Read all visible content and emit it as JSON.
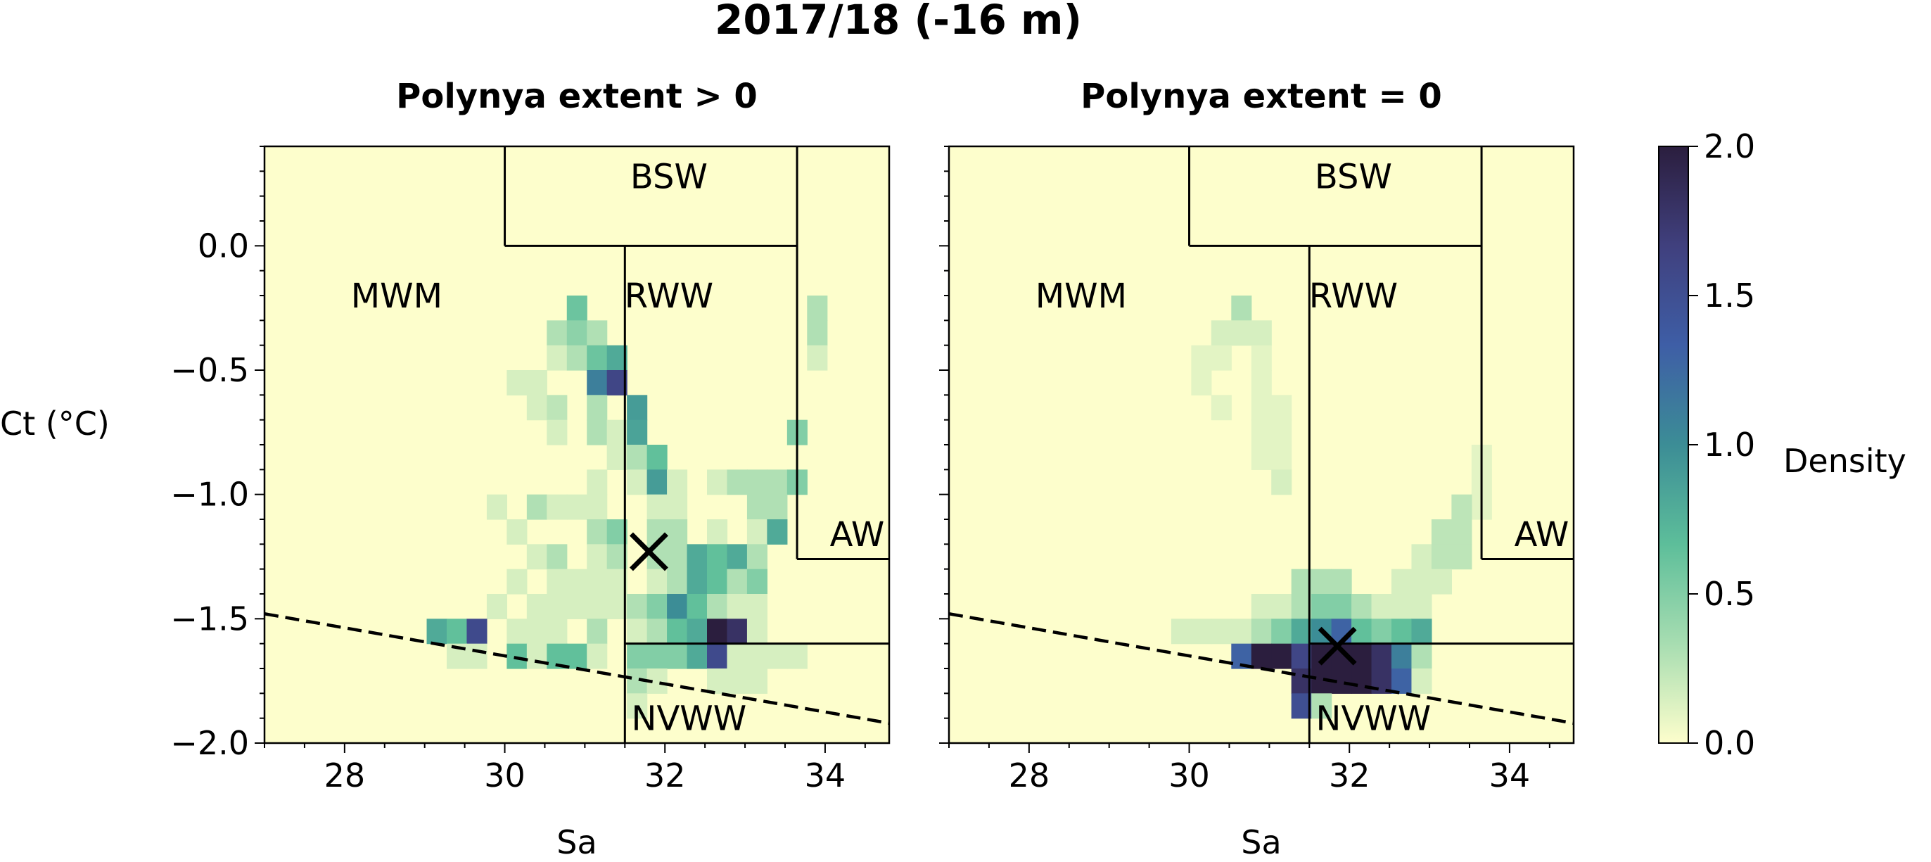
{
  "figure": {
    "title": "2017/18 (-16 m)",
    "colorbar": {
      "label": "Density",
      "ticks": [
        "0.0",
        "0.5",
        "1.0",
        "1.5",
        "2.0"
      ],
      "range": [
        0,
        2
      ],
      "colormap": [
        "#fdfecc",
        "#a7ddb1",
        "#5dbe9a",
        "#3c8d96",
        "#3e5ea6",
        "#40407e",
        "#2b1e3e"
      ]
    }
  },
  "chart_data": [
    {
      "type": "heatmap",
      "title": "Polynya extent > 0",
      "xlabel": "Sa",
      "ylabel": "Ct (°C)",
      "xlim": [
        27,
        34.8
      ],
      "ylim": [
        -2.0,
        0.4
      ],
      "xticks": [
        "28",
        "30",
        "32",
        "34"
      ],
      "yticks": [
        "−2.0",
        "−1.5",
        "−1.0",
        "−0.5",
        "0.0"
      ],
      "background": "#fdfecc",
      "cell_size": {
        "sa": 0.25,
        "ct": 0.1
      },
      "cells": [
        [
          30.9,
          -0.25,
          0.6
        ],
        [
          30.65,
          -0.35,
          0.3
        ],
        [
          30.9,
          -0.35,
          0.45
        ],
        [
          31.15,
          -0.35,
          0.3
        ],
        [
          30.65,
          -0.45,
          0.15
        ],
        [
          30.9,
          -0.45,
          0.3
        ],
        [
          31.15,
          -0.45,
          0.6
        ],
        [
          31.4,
          -0.45,
          0.8
        ],
        [
          30.15,
          -0.55,
          0.15
        ],
        [
          30.4,
          -0.55,
          0.15
        ],
        [
          31.15,
          -0.55,
          1.1
        ],
        [
          31.4,
          -0.55,
          1.6
        ],
        [
          30.4,
          -0.65,
          0.15
        ],
        [
          30.65,
          -0.65,
          0.25
        ],
        [
          31.15,
          -0.65,
          0.3
        ],
        [
          31.65,
          -0.65,
          0.9
        ],
        [
          30.65,
          -0.75,
          0.15
        ],
        [
          31.15,
          -0.75,
          0.3
        ],
        [
          31.4,
          -0.75,
          0.15
        ],
        [
          31.65,
          -0.75,
          0.85
        ],
        [
          31.4,
          -0.85,
          0.15
        ],
        [
          31.65,
          -0.85,
          0.3
        ],
        [
          31.9,
          -0.85,
          0.65
        ],
        [
          33.65,
          -0.75,
          0.5
        ],
        [
          31.15,
          -0.95,
          0.15
        ],
        [
          31.65,
          -0.95,
          0.15
        ],
        [
          31.9,
          -0.95,
          0.9
        ],
        [
          32.15,
          -0.95,
          0.15
        ],
        [
          32.65,
          -0.95,
          0.15
        ],
        [
          32.9,
          -0.95,
          0.3
        ],
        [
          33.15,
          -0.95,
          0.3
        ],
        [
          33.4,
          -0.95,
          0.3
        ],
        [
          33.65,
          -0.95,
          0.5
        ],
        [
          29.9,
          -1.05,
          0.15
        ],
        [
          30.4,
          -1.05,
          0.3
        ],
        [
          30.65,
          -1.05,
          0.15
        ],
        [
          30.9,
          -1.05,
          0.15
        ],
        [
          31.15,
          -1.05,
          0.15
        ],
        [
          31.9,
          -1.05,
          0.15
        ],
        [
          32.15,
          -1.05,
          0.15
        ],
        [
          33.15,
          -1.05,
          0.3
        ],
        [
          33.4,
          -1.05,
          0.3
        ],
        [
          30.15,
          -1.15,
          0.15
        ],
        [
          31.15,
          -1.15,
          0.3
        ],
        [
          31.4,
          -1.15,
          0.5
        ],
        [
          31.9,
          -1.15,
          0.3
        ],
        [
          32.15,
          -1.15,
          0.3
        ],
        [
          32.65,
          -1.15,
          0.15
        ],
        [
          33.15,
          -1.15,
          0.15
        ],
        [
          33.4,
          -1.15,
          0.8
        ],
        [
          30.4,
          -1.25,
          0.15
        ],
        [
          30.65,
          -1.25,
          0.3
        ],
        [
          31.15,
          -1.25,
          0.15
        ],
        [
          31.4,
          -1.25,
          0.3
        ],
        [
          31.9,
          -1.25,
          0.3
        ],
        [
          32.15,
          -1.25,
          0.3
        ],
        [
          32.4,
          -1.25,
          0.8
        ],
        [
          32.65,
          -1.25,
          0.65
        ],
        [
          32.9,
          -1.25,
          0.8
        ],
        [
          33.15,
          -1.25,
          0.3
        ],
        [
          30.15,
          -1.35,
          0.15
        ],
        [
          30.65,
          -1.35,
          0.15
        ],
        [
          30.9,
          -1.35,
          0.15
        ],
        [
          31.15,
          -1.35,
          0.15
        ],
        [
          31.4,
          -1.35,
          0.15
        ],
        [
          31.9,
          -1.35,
          0.15
        ],
        [
          32.15,
          -1.35,
          0.3
        ],
        [
          32.4,
          -1.35,
          0.8
        ],
        [
          32.65,
          -1.35,
          0.65
        ],
        [
          32.9,
          -1.35,
          0.3
        ],
        [
          33.15,
          -1.35,
          0.5
        ],
        [
          29.9,
          -1.45,
          0.15
        ],
        [
          30.4,
          -1.45,
          0.15
        ],
        [
          30.65,
          -1.45,
          0.15
        ],
        [
          30.9,
          -1.45,
          0.15
        ],
        [
          31.15,
          -1.45,
          0.15
        ],
        [
          31.4,
          -1.45,
          0.15
        ],
        [
          31.65,
          -1.45,
          0.3
        ],
        [
          31.9,
          -1.45,
          0.5
        ],
        [
          32.15,
          -1.45,
          1.0
        ],
        [
          32.4,
          -1.45,
          0.65
        ],
        [
          32.65,
          -1.45,
          0.3
        ],
        [
          32.9,
          -1.45,
          0.15
        ],
        [
          33.15,
          -1.45,
          0.15
        ],
        [
          29.15,
          -1.55,
          0.8
        ],
        [
          29.4,
          -1.55,
          0.65
        ],
        [
          29.65,
          -1.55,
          1.55
        ],
        [
          30.15,
          -1.55,
          0.15
        ],
        [
          30.4,
          -1.55,
          0.15
        ],
        [
          30.65,
          -1.55,
          0.15
        ],
        [
          31.15,
          -1.55,
          0.3
        ],
        [
          31.65,
          -1.55,
          0.15
        ],
        [
          31.9,
          -1.55,
          0.3
        ],
        [
          32.15,
          -1.55,
          0.65
        ],
        [
          32.4,
          -1.55,
          0.8
        ],
        [
          32.65,
          -1.55,
          2.0
        ],
        [
          32.9,
          -1.55,
          1.8
        ],
        [
          33.15,
          -1.55,
          0.15
        ],
        [
          29.4,
          -1.65,
          0.15
        ],
        [
          29.65,
          -1.65,
          0.15
        ],
        [
          30.15,
          -1.65,
          0.65
        ],
        [
          30.4,
          -1.65,
          0.15
        ],
        [
          30.65,
          -1.65,
          0.65
        ],
        [
          30.9,
          -1.65,
          0.65
        ],
        [
          31.15,
          -1.65,
          0.15
        ],
        [
          31.65,
          -1.65,
          0.5
        ],
        [
          31.9,
          -1.65,
          0.5
        ],
        [
          32.15,
          -1.65,
          0.5
        ],
        [
          32.4,
          -1.65,
          0.8
        ],
        [
          32.65,
          -1.65,
          1.55
        ],
        [
          32.9,
          -1.65,
          0.15
        ],
        [
          33.15,
          -1.65,
          0.15
        ],
        [
          33.4,
          -1.65,
          0.15
        ],
        [
          33.65,
          -1.65,
          0.15
        ],
        [
          31.65,
          -1.75,
          0.3
        ],
        [
          31.9,
          -1.75,
          0.15
        ],
        [
          32.65,
          -1.75,
          0.15
        ],
        [
          32.9,
          -1.75,
          0.15
        ],
        [
          33.15,
          -1.75,
          0.15
        ],
        [
          31.65,
          -1.85,
          0.15
        ],
        [
          33.9,
          -0.25,
          0.3
        ],
        [
          33.9,
          -0.35,
          0.3
        ],
        [
          33.9,
          -0.45,
          0.15
        ]
      ],
      "regions": [
        "BSW",
        "MWM",
        "RWW",
        "AW",
        "NVWW"
      ],
      "mean_marker": {
        "sa": 31.8,
        "ct": -1.23
      },
      "freezing_line": {
        "sa": [
          27,
          34.8
        ],
        "ct": [
          -1.48,
          -1.92
        ]
      }
    },
    {
      "type": "heatmap",
      "title": "Polynya extent = 0",
      "xlabel": "Sa",
      "ylabel": "",
      "xlim": [
        27,
        34.8
      ],
      "ylim": [
        -2.0,
        0.4
      ],
      "xticks": [
        "28",
        "30",
        "32",
        "34"
      ],
      "yticks": [],
      "background": "#fdfecc",
      "cell_size": {
        "sa": 0.25,
        "ct": 0.1
      },
      "cells": [
        [
          30.65,
          -0.25,
          0.3
        ],
        [
          30.4,
          -0.35,
          0.15
        ],
        [
          30.65,
          -0.35,
          0.15
        ],
        [
          30.9,
          -0.35,
          0.15
        ],
        [
          30.15,
          -0.45,
          0.1
        ],
        [
          30.4,
          -0.45,
          0.1
        ],
        [
          30.9,
          -0.45,
          0.1
        ],
        [
          30.15,
          -0.55,
          0.1
        ],
        [
          30.9,
          -0.55,
          0.1
        ],
        [
          30.4,
          -0.65,
          0.1
        ],
        [
          30.9,
          -0.65,
          0.1
        ],
        [
          31.15,
          -0.65,
          0.1
        ],
        [
          30.9,
          -0.75,
          0.1
        ],
        [
          31.15,
          -0.75,
          0.1
        ],
        [
          30.9,
          -0.85,
          0.1
        ],
        [
          31.15,
          -0.85,
          0.1
        ],
        [
          33.65,
          -0.85,
          0.1
        ],
        [
          33.65,
          -0.95,
          0.1
        ],
        [
          31.15,
          -0.95,
          0.15
        ],
        [
          33.65,
          -1.05,
          0.1
        ],
        [
          33.4,
          -1.05,
          0.25
        ],
        [
          33.15,
          -1.15,
          0.25
        ],
        [
          33.4,
          -1.15,
          0.25
        ],
        [
          32.9,
          -1.25,
          0.15
        ],
        [
          33.15,
          -1.25,
          0.25
        ],
        [
          33.4,
          -1.25,
          0.25
        ],
        [
          31.4,
          -1.35,
          0.3
        ],
        [
          31.65,
          -1.35,
          0.3
        ],
        [
          31.9,
          -1.35,
          0.3
        ],
        [
          32.65,
          -1.35,
          0.15
        ],
        [
          32.9,
          -1.35,
          0.15
        ],
        [
          33.15,
          -1.35,
          0.15
        ],
        [
          30.9,
          -1.45,
          0.15
        ],
        [
          31.15,
          -1.45,
          0.15
        ],
        [
          31.4,
          -1.45,
          0.3
        ],
        [
          31.65,
          -1.45,
          0.5
        ],
        [
          31.9,
          -1.45,
          0.5
        ],
        [
          32.15,
          -1.45,
          0.3
        ],
        [
          32.4,
          -1.45,
          0.15
        ],
        [
          32.65,
          -1.45,
          0.15
        ],
        [
          32.9,
          -1.45,
          0.15
        ],
        [
          29.9,
          -1.55,
          0.15
        ],
        [
          30.15,
          -1.55,
          0.15
        ],
        [
          30.4,
          -1.55,
          0.15
        ],
        [
          30.65,
          -1.55,
          0.15
        ],
        [
          30.9,
          -1.55,
          0.3
        ],
        [
          31.15,
          -1.55,
          0.5
        ],
        [
          31.4,
          -1.55,
          0.8
        ],
        [
          31.65,
          -1.55,
          1.0
        ],
        [
          31.9,
          -1.55,
          1.3
        ],
        [
          32.15,
          -1.55,
          0.65
        ],
        [
          32.4,
          -1.55,
          0.5
        ],
        [
          32.65,
          -1.55,
          0.65
        ],
        [
          32.9,
          -1.55,
          0.8
        ],
        [
          30.65,
          -1.65,
          1.3
        ],
        [
          30.9,
          -1.65,
          2.0
        ],
        [
          31.15,
          -1.65,
          2.0
        ],
        [
          31.4,
          -1.65,
          1.6
        ],
        [
          31.65,
          -1.65,
          2.0
        ],
        [
          31.9,
          -1.65,
          2.0
        ],
        [
          32.15,
          -1.65,
          2.0
        ],
        [
          32.4,
          -1.65,
          1.8
        ],
        [
          32.65,
          -1.65,
          1.1
        ],
        [
          32.9,
          -1.65,
          0.3
        ],
        [
          31.4,
          -1.75,
          1.8
        ],
        [
          31.65,
          -1.75,
          2.0
        ],
        [
          31.9,
          -1.75,
          2.0
        ],
        [
          32.15,
          -1.75,
          2.0
        ],
        [
          32.4,
          -1.75,
          1.8
        ],
        [
          32.65,
          -1.75,
          1.3
        ],
        [
          32.9,
          -1.75,
          0.15
        ],
        [
          31.4,
          -1.85,
          1.5
        ],
        [
          31.65,
          -1.85,
          0.3
        ]
      ],
      "regions": [
        "BSW",
        "MWM",
        "RWW",
        "AW",
        "NVWW"
      ],
      "mean_marker": {
        "sa": 31.85,
        "ct": -1.61
      },
      "freezing_line": {
        "sa": [
          27,
          34.8
        ],
        "ct": [
          -1.48,
          -1.92
        ]
      }
    }
  ]
}
